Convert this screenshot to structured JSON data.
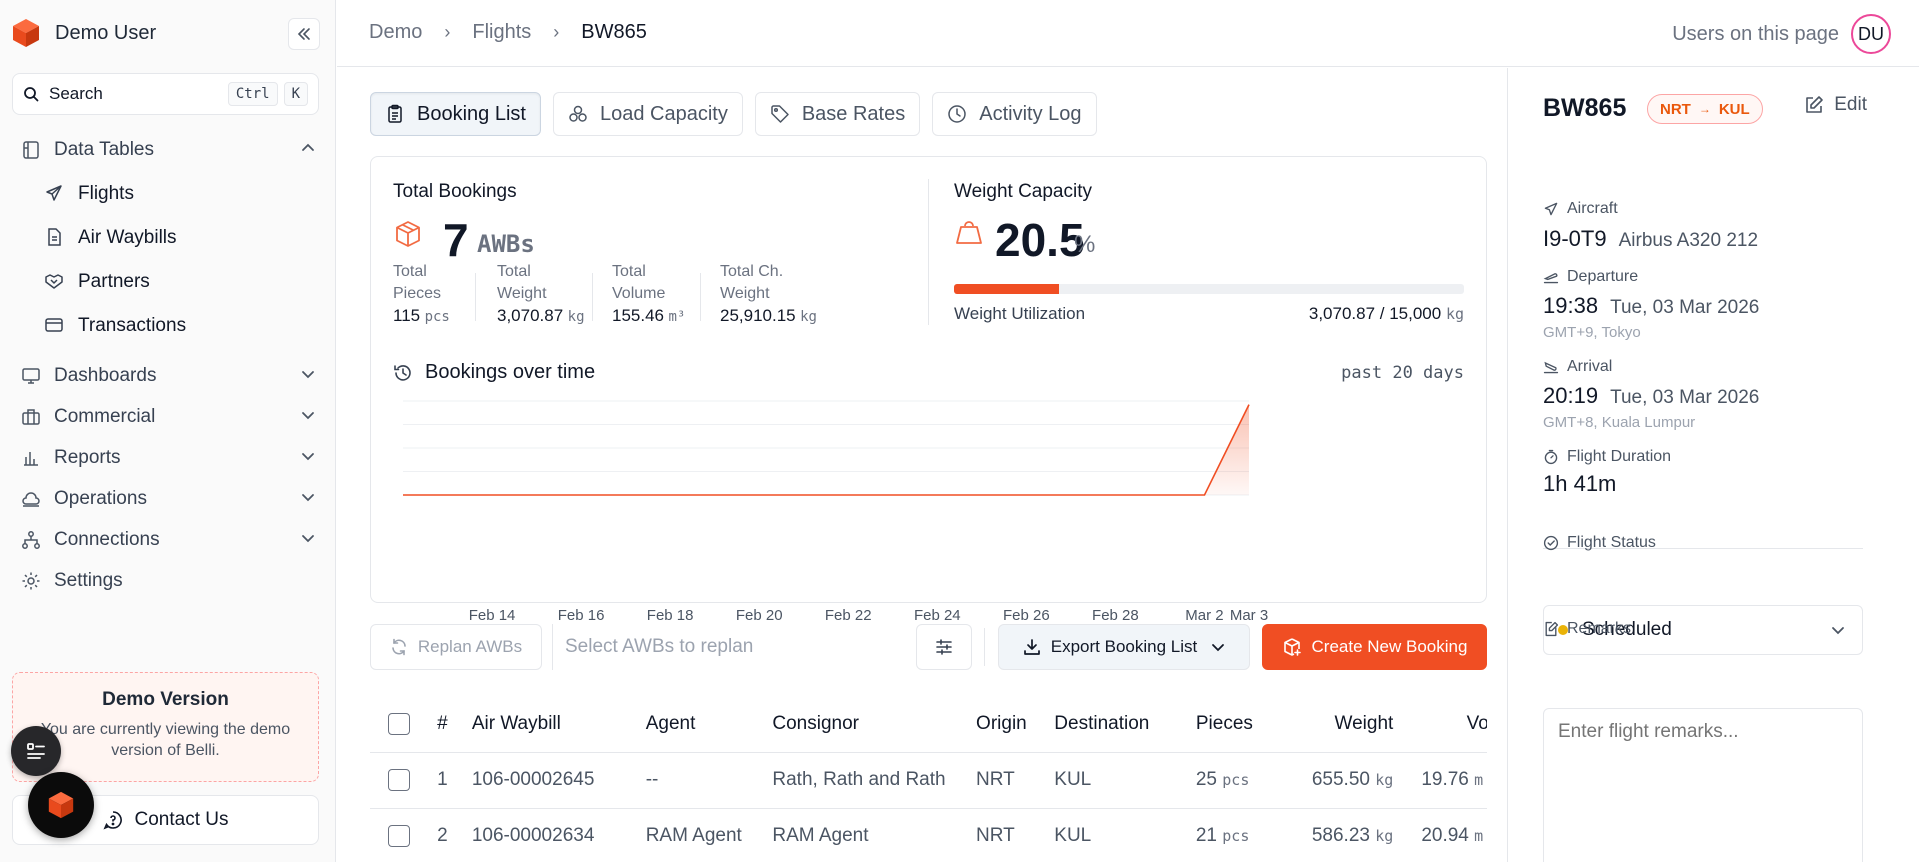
{
  "user": {
    "name": "Demo User"
  },
  "search": {
    "label": "Search",
    "shortcut_keys": [
      "Ctrl",
      "K"
    ]
  },
  "sidebar": {
    "data_tables": {
      "label": "Data Tables",
      "items": [
        {
          "label": "Flights",
          "icon": "plane-icon"
        },
        {
          "label": "Air Waybills",
          "icon": "document-icon"
        },
        {
          "label": "Partners",
          "icon": "handshake-icon"
        },
        {
          "label": "Transactions",
          "icon": "credit-card-icon"
        }
      ]
    },
    "sections": [
      {
        "label": "Dashboards",
        "icon": "monitor-icon"
      },
      {
        "label": "Commercial",
        "icon": "briefcase-icon"
      },
      {
        "label": "Reports",
        "icon": "bar-chart-icon"
      },
      {
        "label": "Operations",
        "icon": "cloud-icon"
      },
      {
        "label": "Connections",
        "icon": "network-icon"
      }
    ],
    "settings": {
      "label": "Settings",
      "icon": "gear-icon"
    },
    "demo": {
      "title": "Demo Version",
      "text": "You are currently viewing the demo version of Belli."
    },
    "contact": {
      "label": "Contact Us"
    }
  },
  "breadcrumb": [
    "Demo",
    "Flights",
    "BW865"
  ],
  "viewers": {
    "label": "Users on this page",
    "avatar": "DU"
  },
  "tabs": [
    {
      "label": "Booking List",
      "active": true
    },
    {
      "label": "Load Capacity",
      "active": false
    },
    {
      "label": "Base Rates",
      "active": false
    },
    {
      "label": "Activity Log",
      "active": false
    }
  ],
  "stats": {
    "bookings_title": "Total Bookings",
    "bookings_count": "7",
    "bookings_unit": "AWBs",
    "pieces": {
      "label_1": "Total",
      "label_2": "Pieces",
      "value": "115",
      "unit": "pcs"
    },
    "weight": {
      "label_1": "Total",
      "label_2": "Weight",
      "value": "3,070.87",
      "unit": "kg"
    },
    "volume": {
      "label_1": "Total",
      "label_2": "Volume",
      "value": "155.46",
      "unit": "m³"
    },
    "chargeable": {
      "label_1": "Total Ch.",
      "label_2": "Weight",
      "value": "25,910.15",
      "unit": "kg"
    },
    "capacity_title": "Weight Capacity",
    "capacity_value": "20.5",
    "capacity_unit": "%",
    "utilization_fraction": 0.205,
    "utilization_label": "Weight Utilization",
    "utilization_value": "3,070.87 / 15,000",
    "utilization_unit": "kg"
  },
  "chart_data": {
    "type": "area",
    "title": "Bookings over time",
    "period": "past 20 days",
    "tick_labels": [
      "Feb 14",
      "Feb 16",
      "Feb 18",
      "Feb 20",
      "Feb 22",
      "Feb 24",
      "Feb 26",
      "Feb 28",
      "Mar 2",
      "Mar 3"
    ],
    "x": [
      "Feb 12",
      "Feb 13",
      "Feb 14",
      "Feb 15",
      "Feb 16",
      "Feb 17",
      "Feb 18",
      "Feb 19",
      "Feb 20",
      "Feb 21",
      "Feb 22",
      "Feb 23",
      "Feb 24",
      "Feb 25",
      "Feb 26",
      "Feb 27",
      "Feb 28",
      "Mar 1",
      "Mar 2",
      "Mar 3"
    ],
    "values": [
      0,
      0,
      0,
      0,
      0,
      0,
      0,
      0,
      0,
      0,
      0,
      0,
      0,
      0,
      0,
      0,
      0,
      0,
      0,
      7
    ],
    "color": "#f04e23",
    "grid": true
  },
  "toolbar": {
    "replan_label": "Replan AWBs",
    "replan_placeholder": "Select AWBs to replan",
    "export_label": "Export Booking List",
    "create_label": "Create New Booking"
  },
  "table": {
    "headers": [
      "#",
      "Air Waybill",
      "Agent",
      "Consignor",
      "Origin",
      "Destination",
      "Pieces",
      "Weight",
      "Volume"
    ],
    "rows": [
      {
        "num": "1",
        "awb": "106-00002645",
        "agent": "--",
        "consignor": "Rath, Rath and Rath",
        "origin": "NRT",
        "destination": "KUL",
        "pieces": "25",
        "pieces_unit": "pcs",
        "weight": "655.50",
        "weight_unit": "kg",
        "volume": "19.76",
        "volume_unit": "m"
      },
      {
        "num": "2",
        "awb": "106-00002634",
        "agent": "RAM Agent",
        "consignor": "RAM Agent",
        "origin": "NRT",
        "destination": "KUL",
        "pieces": "21",
        "pieces_unit": "pcs",
        "weight": "586.23",
        "weight_unit": "kg",
        "volume": "20.94",
        "volume_unit": "m"
      }
    ]
  },
  "flight": {
    "code": "BW865",
    "origin": "NRT",
    "destination": "KUL",
    "edit_label": "Edit",
    "aircraft_label": "Aircraft",
    "aircraft_reg": "I9-0T9",
    "aircraft_type": "Airbus A320 212",
    "departure_label": "Departure",
    "departure_time": "19:38",
    "departure_date": "Tue, 03 Mar 2026",
    "departure_tz": "GMT+9, Tokyo",
    "arrival_label": "Arrival",
    "arrival_time": "20:19",
    "arrival_date": "Tue, 03 Mar 2026",
    "arrival_tz": "GMT+8, Kuala Lumpur",
    "duration_label": "Flight Duration",
    "duration": "1h 41m",
    "status_label": "Flight Status",
    "status": "Scheduled",
    "status_color": "#eab308",
    "remarks_label": "Remarks",
    "remarks_placeholder": "Enter flight remarks..."
  },
  "colors": {
    "accent": "#f04e23",
    "brand": "#f04e23"
  }
}
